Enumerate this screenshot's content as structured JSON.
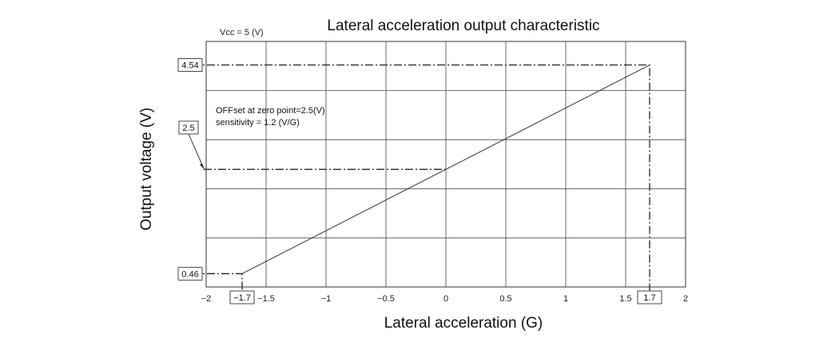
{
  "chart_data": {
    "type": "line",
    "title": "Lateral acceleration output characteristic",
    "condition": "Vcc = 5 (V)",
    "xlabel": "Lateral acceleration (G)",
    "ylabel": "Output voltage (V)",
    "xlim": [
      -2,
      2
    ],
    "ylim": [
      0.2,
      5.0
    ],
    "x_ticks": [
      -2,
      -1.5,
      -1,
      -0.5,
      0,
      0.5,
      1,
      1.5,
      2
    ],
    "x_tick_labels": [
      "−2",
      "−1.5",
      "−1",
      "−0.5",
      "0",
      "0.5",
      "1",
      "1.5",
      "2"
    ],
    "grid": true,
    "series": [
      {
        "x": [
          -1.7,
          0,
          1.7
        ],
        "y": [
          0.46,
          2.5,
          4.54
        ]
      }
    ],
    "annotations": {
      "offset": "OFFset at zero point=2.5(V)",
      "sensitivity": "sensitivity = 1.2 (V/G)"
    },
    "callouts": [
      {
        "label": "4.54",
        "x": 1.7,
        "y": 4.54
      },
      {
        "label": "2.5",
        "x": 0,
        "y": 2.5
      },
      {
        "label": "0.46",
        "x": -1.7,
        "y": 0.46
      }
    ],
    "x_callouts": [
      {
        "label": "−1.7",
        "x": -1.7
      },
      {
        "label": "1.7",
        "x": 1.7
      }
    ]
  }
}
